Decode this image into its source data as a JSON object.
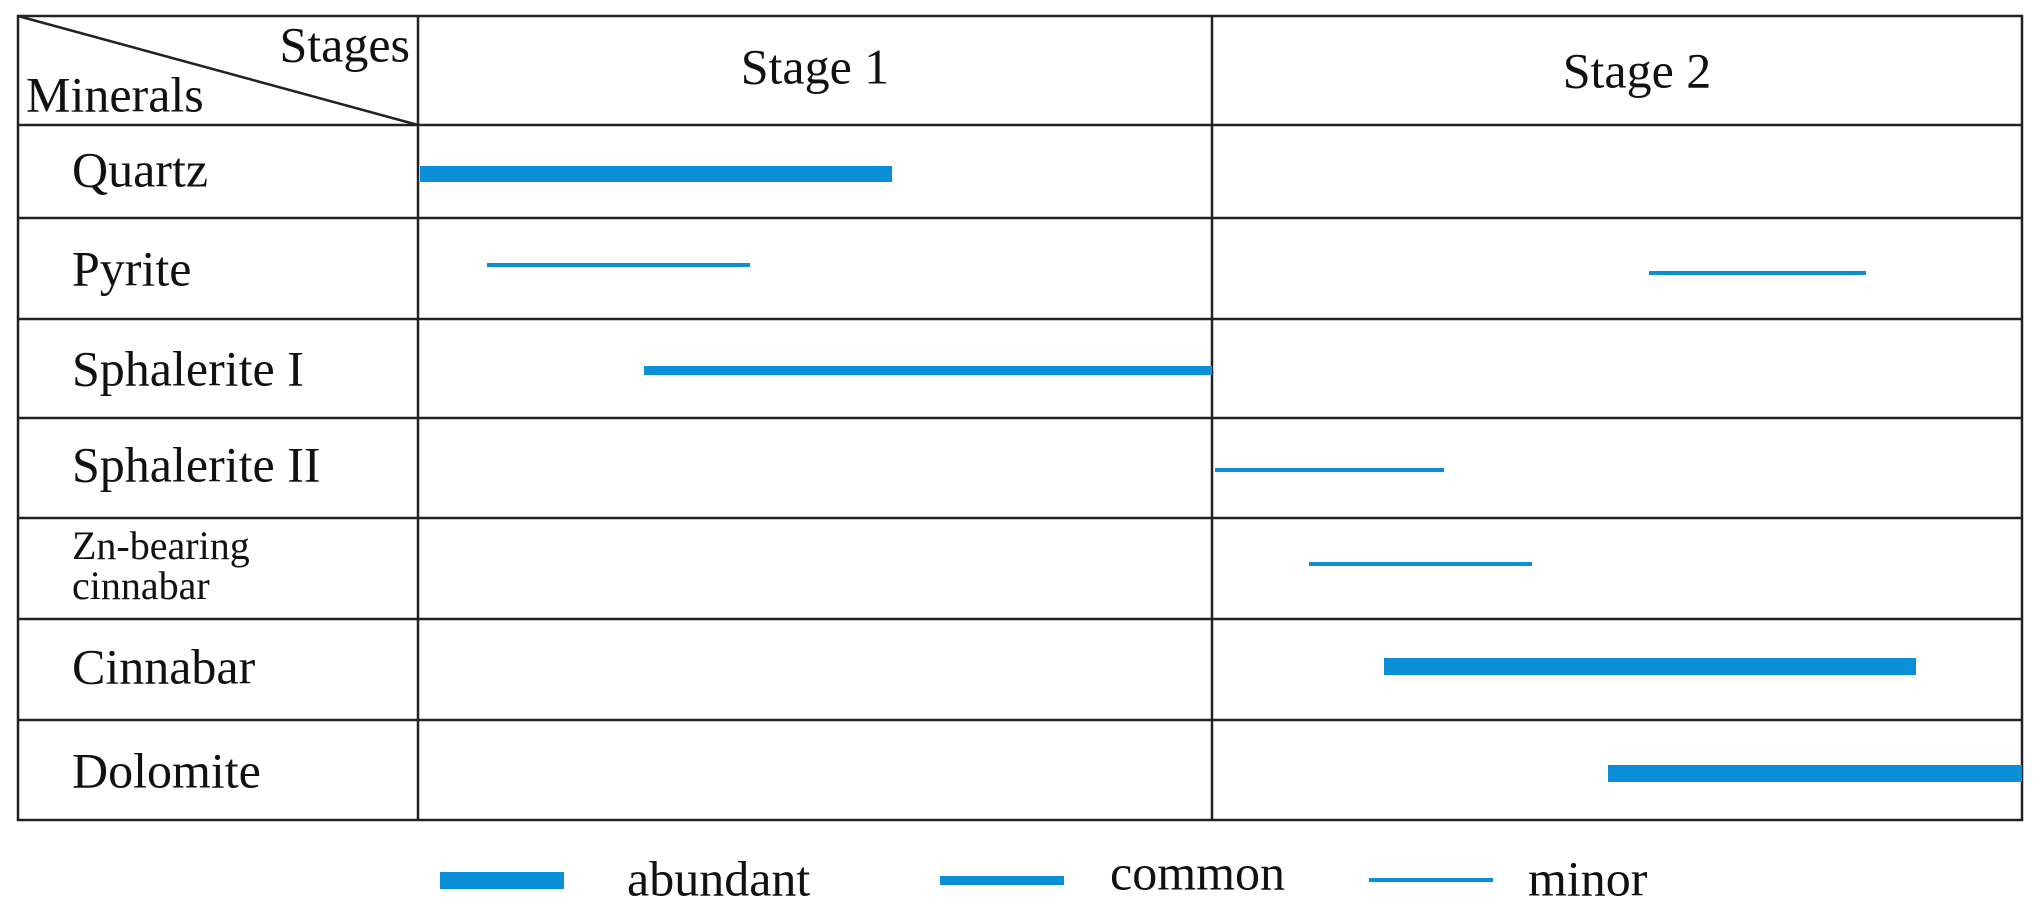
{
  "header": {
    "corner_top": "Stages",
    "corner_bottom": "Minerals",
    "stages": [
      "Stage 1",
      "Stage 2"
    ]
  },
  "minerals": [
    "Quartz",
    "Pyrite",
    "Sphalerite I",
    "Sphalerite II",
    [
      "Zn-bearing",
      "cinnabar"
    ],
    "Cinnabar",
    "Dolomite"
  ],
  "legend": [
    "abundant",
    "common",
    "minor"
  ]
}
